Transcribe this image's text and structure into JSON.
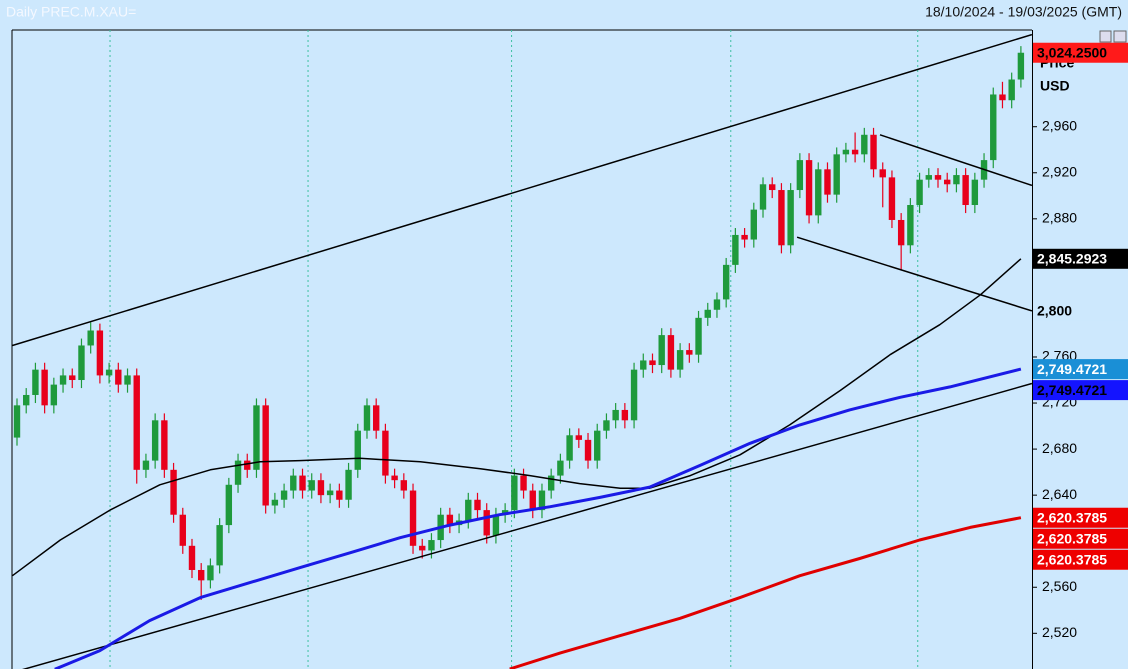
{
  "chart_data": {
    "type": "candlestick",
    "title": "Daily PREC.M.XAU=",
    "subtitle": "18/10/2024 - 19/03/2025 (GMT)",
    "y_label": [
      "Price",
      "USD"
    ],
    "up_color": "#1f9a3c",
    "down_color": "#e8001c",
    "ylim": [
      2489,
      3044
    ],
    "yticks": [
      {
        "value": 2520,
        "label": "2,520"
      },
      {
        "value": 2560,
        "label": "2,560"
      },
      {
        "value": 2640,
        "label": "2,640"
      },
      {
        "value": 2680,
        "label": "2,680"
      },
      {
        "value": 2720,
        "label": "2,720"
      },
      {
        "value": 2760,
        "label": "2,760"
      },
      {
        "value": 2880,
        "label": "2,880"
      },
      {
        "value": 2920,
        "label": "2,920"
      },
      {
        "value": 2960,
        "label": "2,960"
      }
    ],
    "open": [
      2690,
      2718,
      2727,
      2749,
      2718,
      2736,
      2744,
      2740,
      2770,
      2783,
      2744,
      2749,
      2736,
      2744,
      2662,
      2670,
      2705,
      2662,
      2623,
      2596,
      2575,
      2566,
      2579,
      2614,
      2649,
      2670,
      2662,
      2718,
      2631,
      2636,
      2644,
      2657,
      2644,
      2653,
      2640,
      2644,
      2636,
      2662,
      2696,
      2718,
      2696,
      2657,
      2653,
      2644,
      2596,
      2592,
      2601,
      2623,
      2614,
      2618,
      2636,
      2627,
      2605,
      2623,
      2627,
      2657,
      2644,
      2627,
      2644,
      2657,
      2670,
      2692,
      2688,
      2670,
      2696,
      2705,
      2714,
      2705,
      2749,
      2757,
      2753,
      2779,
      2749,
      2766,
      2762,
      2794,
      2801,
      2810,
      2840,
      2866,
      2862,
      2888,
      2910,
      2905,
      2857,
      2905,
      2931,
      2883,
      2923,
      2901,
      2936,
      2940,
      2936,
      2953,
      2923,
      2916,
      2879,
      2857,
      2892,
      2914,
      2918,
      2914,
      2910,
      2918,
      2892,
      2914,
      2931,
      2988,
      2983,
      3001
    ],
    "high": [
      2724,
      2733,
      2755,
      2755,
      2742,
      2750,
      2750,
      2776,
      2790,
      2789,
      2755,
      2755,
      2750,
      2750,
      2676,
      2711,
      2711,
      2668,
      2629,
      2602,
      2581,
      2585,
      2620,
      2655,
      2676,
      2676,
      2724,
      2724,
      2642,
      2650,
      2663,
      2663,
      2659,
      2659,
      2650,
      2650,
      2668,
      2702,
      2724,
      2724,
      2702,
      2663,
      2659,
      2650,
      2602,
      2607,
      2629,
      2629,
      2624,
      2642,
      2642,
      2633,
      2629,
      2633,
      2663,
      2663,
      2650,
      2650,
      2663,
      2676,
      2698,
      2698,
      2694,
      2702,
      2711,
      2720,
      2720,
      2755,
      2763,
      2763,
      2785,
      2785,
      2772,
      2772,
      2800,
      2807,
      2816,
      2846,
      2872,
      2872,
      2894,
      2916,
      2916,
      2911,
      2911,
      2937,
      2937,
      2929,
      2929,
      2942,
      2946,
      2955,
      2959,
      2959,
      2929,
      2922,
      2885,
      2898,
      2920,
      2924,
      2924,
      2920,
      2924,
      2924,
      2920,
      2937,
      2994,
      2999,
      3007,
      3030
    ],
    "low": [
      2683,
      2711,
      2720,
      2711,
      2711,
      2729,
      2733,
      2733,
      2763,
      2737,
      2737,
      2729,
      2729,
      2650,
      2655,
      2663,
      2655,
      2616,
      2589,
      2568,
      2549,
      2559,
      2572,
      2607,
      2642,
      2655,
      2655,
      2624,
      2624,
      2629,
      2637,
      2637,
      2637,
      2633,
      2633,
      2629,
      2629,
      2655,
      2689,
      2689,
      2650,
      2646,
      2637,
      2589,
      2585,
      2585,
      2594,
      2607,
      2607,
      2611,
      2620,
      2598,
      2598,
      2616,
      2620,
      2637,
      2620,
      2620,
      2637,
      2650,
      2663,
      2681,
      2663,
      2663,
      2689,
      2698,
      2698,
      2698,
      2742,
      2746,
      2746,
      2742,
      2742,
      2755,
      2755,
      2787,
      2794,
      2803,
      2833,
      2855,
      2855,
      2881,
      2898,
      2850,
      2850,
      2898,
      2876,
      2876,
      2894,
      2894,
      2929,
      2929,
      2929,
      2916,
      2890,
      2872,
      2836,
      2850,
      2885,
      2907,
      2907,
      2903,
      2903,
      2885,
      2885,
      2907,
      2924,
      2976,
      2976,
      2994
    ],
    "close": [
      2718,
      2727,
      2749,
      2718,
      2736,
      2744,
      2740,
      2770,
      2783,
      2744,
      2749,
      2736,
      2744,
      2662,
      2670,
      2705,
      2662,
      2623,
      2596,
      2575,
      2566,
      2579,
      2614,
      2649,
      2670,
      2662,
      2718,
      2631,
      2636,
      2644,
      2657,
      2644,
      2653,
      2640,
      2644,
      2636,
      2662,
      2696,
      2718,
      2696,
      2657,
      2653,
      2644,
      2596,
      2592,
      2601,
      2623,
      2614,
      2618,
      2636,
      2627,
      2605,
      2623,
      2627,
      2657,
      2644,
      2627,
      2644,
      2657,
      2670,
      2692,
      2688,
      2670,
      2696,
      2705,
      2714,
      2705,
      2749,
      2757,
      2753,
      2779,
      2749,
      2766,
      2762,
      2794,
      2801,
      2810,
      2840,
      2866,
      2862,
      2888,
      2910,
      2905,
      2857,
      2905,
      2931,
      2883,
      2923,
      2901,
      2936,
      2940,
      2936,
      2953,
      2923,
      2916,
      2879,
      2857,
      2892,
      2914,
      2918,
      2914,
      2910,
      2918,
      2892,
      2914,
      2931,
      2988,
      2983,
      3001,
      3024.25
    ],
    "lines": [
      {
        "color": "#000000",
        "width": 1.5,
        "x": [
          -0.5,
          110.2
        ],
        "values": [
          2770,
          3040
        ]
      },
      {
        "color": "#000000",
        "width": 1.5,
        "x": [
          -0.5,
          110.2
        ],
        "values": [
          2486,
          2737
        ]
      },
      {
        "color": "#000000",
        "width": 1.5,
        "x": [
          93.7,
          110.2
        ],
        "values": [
          2953,
          2909
        ]
      },
      {
        "color": "#000000",
        "width": 1.5,
        "x": [
          84.7,
          110.2
        ],
        "values": [
          2864,
          2800
        ]
      },
      {
        "color": "#000000",
        "width": 1.5,
        "x": [
          -0.5,
          4.7,
          10.1,
          15.5,
          21,
          26.4,
          30.7,
          37.2,
          43.8,
          50.3,
          55.7,
          61.1,
          65.5,
          68.7,
          73.1,
          78.5,
          83.9,
          89.4,
          94.8,
          100.2,
          104.6,
          109
        ],
        "values": [
          2570,
          2601,
          2627,
          2649,
          2662,
          2669,
          2670,
          2672,
          2669,
          2663,
          2657,
          2650,
          2646,
          2646,
          2657,
          2675,
          2701,
          2731,
          2762,
          2788,
          2814,
          2845.2923
        ]
      },
      {
        "color": "#1a1ae6",
        "width": 3,
        "x": [
          4.1,
          9,
          14.4,
          19.9,
          25.3,
          30.7,
          36.2,
          41.6,
          47,
          52.4,
          57.9,
          63.3,
          68.7,
          74.2,
          79.6,
          85,
          90.4,
          95.9,
          101.3,
          109
        ],
        "values": [
          2488.7,
          2505,
          2531,
          2551,
          2564,
          2577,
          2590,
          2603,
          2614,
          2623,
          2630,
          2638,
          2647,
          2666,
          2685,
          2701,
          2714,
          2725,
          2734,
          2749.4721
        ]
      },
      {
        "color": "#e00000",
        "width": 3,
        "x": [
          53.5,
          59,
          65.5,
          72,
          78.5,
          85,
          91.5,
          98,
          103.5,
          109
        ],
        "values": [
          2489,
          2503,
          2518,
          2533,
          2551,
          2570,
          2585,
          2601,
          2612,
          2620.3785
        ]
      }
    ],
    "price_labels": [
      {
        "value": 3024.25,
        "label": "3,024.2500",
        "color": "#ff1a1a",
        "text_color": "#000000"
      },
      {
        "value": 2845.2923,
        "label": "2,845.2923",
        "color": "#000000",
        "text_color": "#ffffff"
      },
      {
        "value": 2800,
        "label": "2,800",
        "color": "#cde8fd",
        "text_color": "#000000"
      },
      {
        "value": 2749.4721,
        "label": "2,749.4721",
        "color": "#1a8fd6",
        "text_color": "#ffffff"
      },
      {
        "value": 2749.4721,
        "label": "2,749.4721",
        "color": "#1414ff",
        "text_color": "#000000"
      },
      {
        "value": 2620.3785,
        "label": "2,620.3785",
        "color": "#ee0000",
        "text_color": "#ffffff"
      },
      {
        "value": 2620.3785,
        "label": "2,620.3785",
        "color": "#ee0000",
        "text_color": "#ffffff"
      },
      {
        "value": 2620.3785,
        "label": "2,620.3785",
        "color": "#ee0000",
        "text_color": "#ffffff"
      }
    ]
  }
}
